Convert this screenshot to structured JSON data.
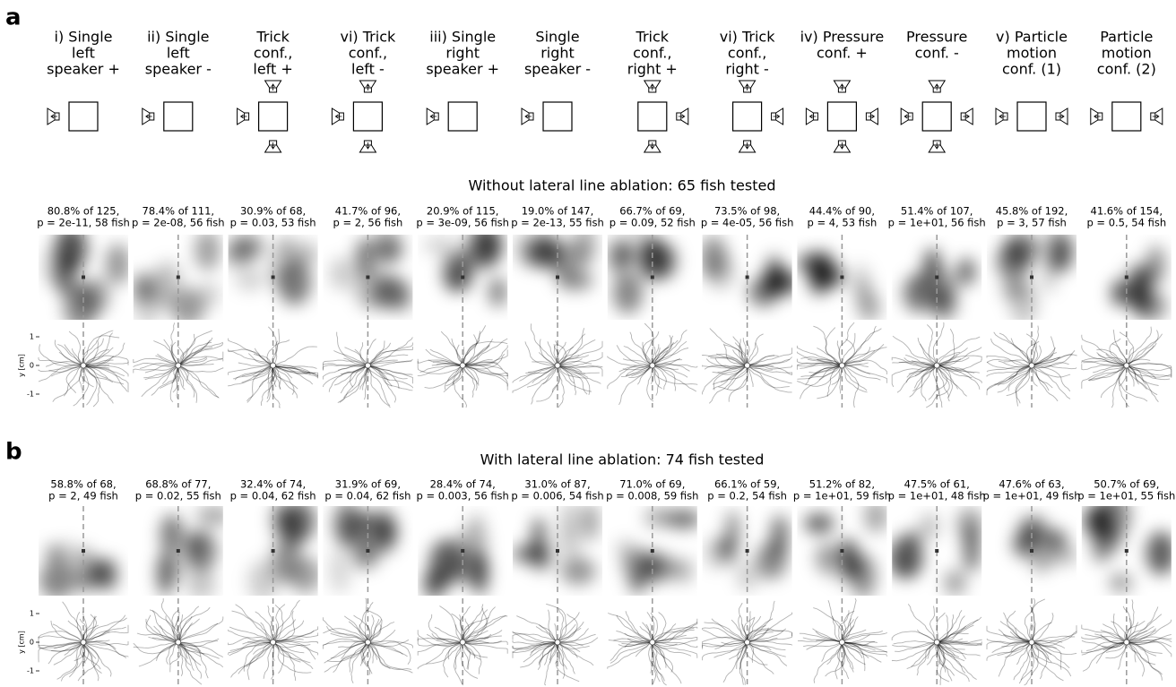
{
  "conditions": [
    [
      "i) Single",
      "left",
      "speaker +"
    ],
    [
      "ii) Single",
      "left",
      "speaker -"
    ],
    [
      "Trick",
      "conf.,",
      "left +"
    ],
    [
      "vi) Trick",
      "conf.,",
      "left -"
    ],
    [
      "iii) Single",
      "right",
      "speaker +"
    ],
    [
      "Single",
      "right",
      "speaker -"
    ],
    [
      "Trick",
      "conf.,",
      "right +"
    ],
    [
      "vi) Trick",
      "conf.,",
      "right -"
    ],
    [
      "iv) Pressure",
      "conf. +"
    ],
    [
      "Pressure",
      "conf. -"
    ],
    [
      "v) Particle",
      "motion",
      "conf. (1)"
    ],
    [
      "Particle",
      "motion",
      "conf. (2)"
    ]
  ],
  "panels": [
    {
      "label": "a",
      "title": "Without lateral line ablation: 65 fish tested",
      "stats": [
        [
          "80.8% of 125,",
          "p = 2e-11, 58 fish"
        ],
        [
          "78.4% of 111,",
          "p = 2e-08, 56 fish"
        ],
        [
          "30.9% of 68,",
          "p = 0.03, 53 fish"
        ],
        [
          "41.7% of 96,",
          "p = 2, 56 fish"
        ],
        [
          "20.9% of 115,",
          "p = 3e-09, 56 fish"
        ],
        [
          "19.0% of 147,",
          "p = 2e-13, 55 fish"
        ],
        [
          "66.7% of 69,",
          "p = 0.09, 52 fish"
        ],
        [
          "73.5% of 98,",
          "p = 4e-05, 56 fish"
        ],
        [
          "44.4% of 90,",
          "p = 4, 53 fish"
        ],
        [
          "51.4% of 107,",
          "p = 1e+01, 56 fish"
        ],
        [
          "45.8% of 192,",
          "p = 3, 57 fish"
        ],
        [
          "41.6% of 154,",
          "p = 0.5, 54 fish"
        ]
      ]
    },
    {
      "label": "b",
      "title": "With lateral line ablation: 74 fish tested",
      "stats": [
        [
          "58.8% of 68,",
          "p = 2, 49 fish"
        ],
        [
          "68.8% of 77,",
          "p = 0.02, 55 fish"
        ],
        [
          "32.4% of 74,",
          "p = 0.04, 62 fish"
        ],
        [
          "31.9% of 69,",
          "p = 0.04, 62 fish"
        ],
        [
          "28.4% of 74,",
          "p = 0.003, 56 fish"
        ],
        [
          "31.0% of 87,",
          "p = 0.006, 54 fish"
        ],
        [
          "71.0% of 69,",
          "p = 0.008, 59 fish"
        ],
        [
          "66.1% of 59,",
          "p = 0.2, 54 fish"
        ],
        [
          "51.2% of 82,",
          "p = 1e+01, 59 fish"
        ],
        [
          "47.5% of 61,",
          "p = 1e+01, 48 fish"
        ],
        [
          "47.6% of 63,",
          "p = 1e+01, 49 fish"
        ],
        [
          "50.7% of 69,",
          "p = 1e+01, 55 fish"
        ]
      ]
    }
  ],
  "y_axis": {
    "label": "y [cm]",
    "ticks": [
      1,
      0,
      -1
    ]
  }
}
